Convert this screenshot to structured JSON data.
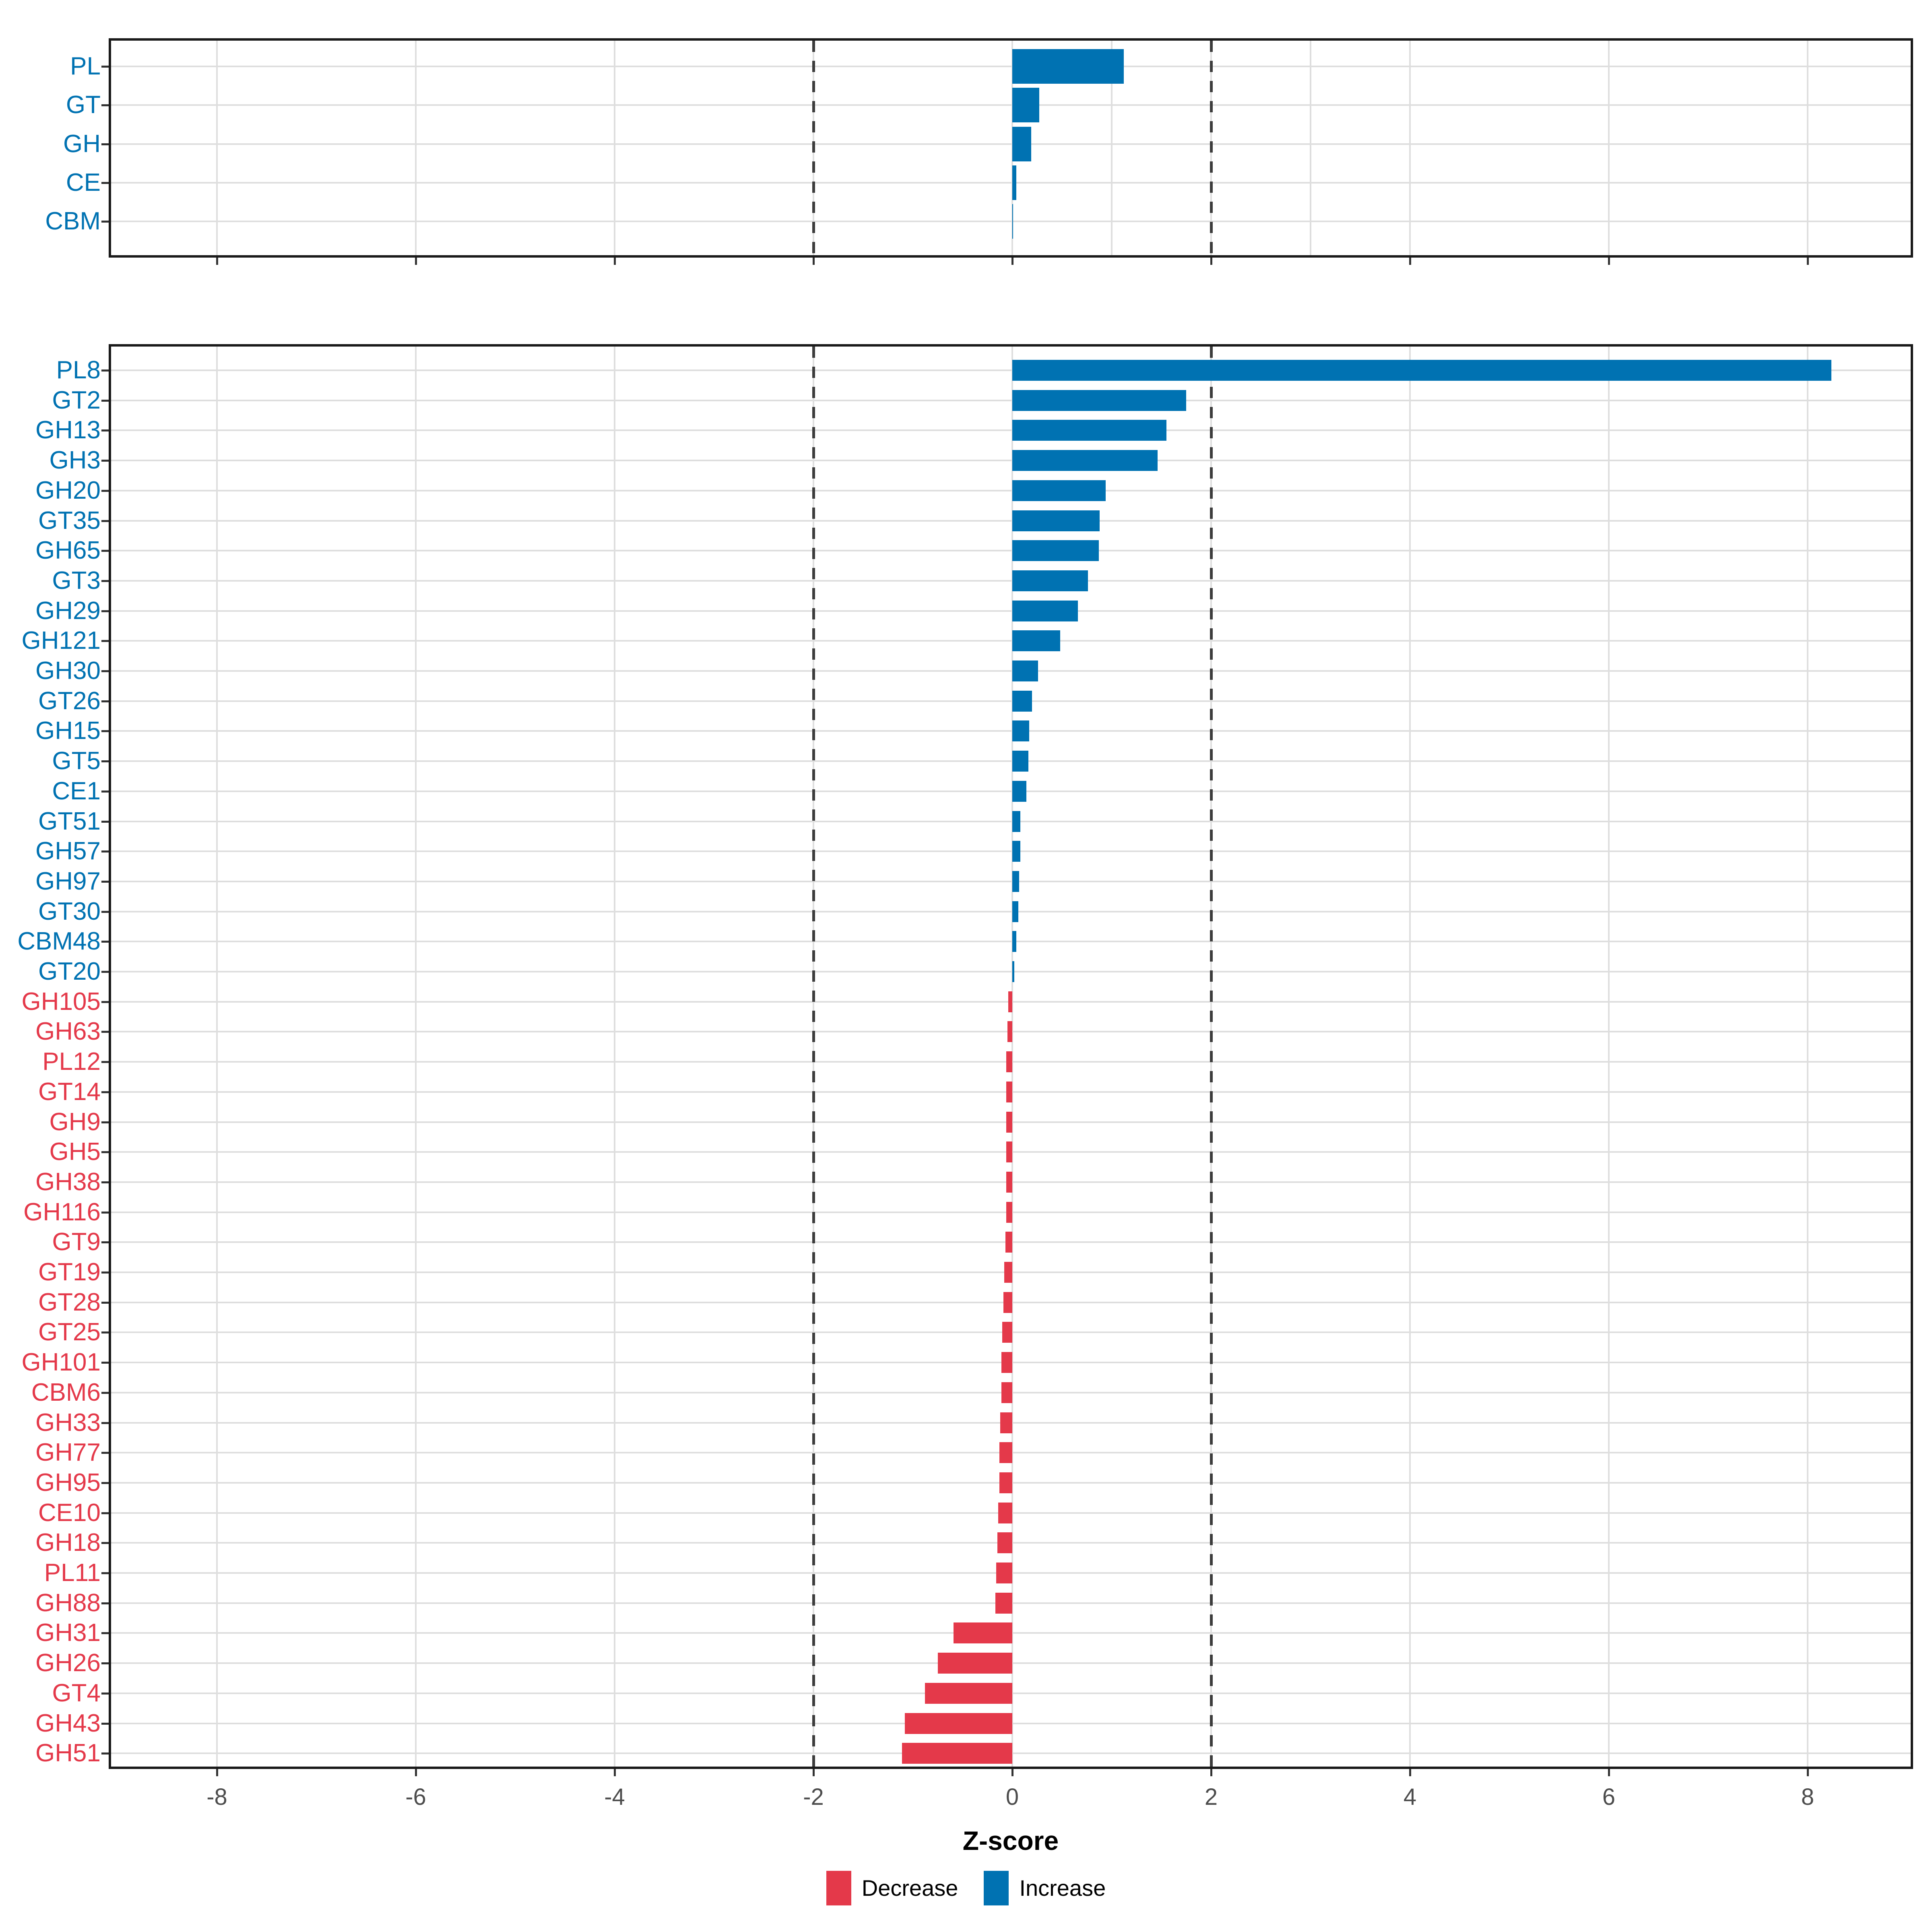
{
  "axis": {
    "xlabel": "Z-score",
    "tick_values": [
      -8,
      -6,
      -4,
      -2,
      0,
      2,
      4,
      6,
      8
    ],
    "tick_labels": [
      "-8",
      "-6",
      "-4",
      "-2",
      "0",
      "2",
      "4",
      "6",
      "8"
    ],
    "xlim": [
      -9.1,
      9.05
    ]
  },
  "legend": {
    "decrease_label": "Decrease",
    "increase_label": "Increase",
    "position": "bottom-center"
  },
  "colors": {
    "increase": "#0072B2",
    "decrease": "#E4394A",
    "grid": "#DEDEDE",
    "dashed_guide": "#3C3C3C",
    "tick_text": "#4D4D4D",
    "panel_border": "#1A1A1A",
    "background": "#FFFFFF"
  },
  "chart_data": [
    {
      "type": "bar",
      "orientation": "horizontal",
      "panel": "class-summary",
      "categories": [
        "PL",
        "GT",
        "GH",
        "CE",
        "CBM"
      ],
      "values": [
        1.12,
        0.27,
        0.19,
        0.04,
        0.01
      ],
      "xlim": [
        -9.1,
        9.05
      ],
      "grid": "on",
      "light_vlines": [
        -8,
        -6,
        -4,
        -2,
        0,
        1,
        2,
        3,
        4,
        6,
        8
      ],
      "dashed_vlines": [
        -2,
        2
      ],
      "legend_position": "none"
    },
    {
      "type": "bar",
      "orientation": "horizontal",
      "panel": "family-detail",
      "categories": [
        "PL8",
        "GT2",
        "GH13",
        "GH3",
        "GH20",
        "GT35",
        "GH65",
        "GT3",
        "GH29",
        "GH121",
        "GH30",
        "GT26",
        "GH15",
        "GT5",
        "CE1",
        "GT51",
        "GH57",
        "GH97",
        "GT30",
        "CBM48",
        "GT20",
        "GH105",
        "GH63",
        "PL12",
        "GT14",
        "GH9",
        "GH5",
        "GH38",
        "GH116",
        "GT9",
        "GT19",
        "GT28",
        "GT25",
        "GH101",
        "CBM6",
        "GH33",
        "GH77",
        "GH95",
        "CE10",
        "GH18",
        "PL11",
        "GH88",
        "GH31",
        "GH26",
        "GT4",
        "GH43",
        "GH51"
      ],
      "values": [
        8.24,
        1.75,
        1.55,
        1.46,
        0.94,
        0.88,
        0.87,
        0.76,
        0.66,
        0.48,
        0.26,
        0.2,
        0.17,
        0.16,
        0.14,
        0.08,
        0.08,
        0.07,
        0.06,
        0.04,
        0.02,
        -0.04,
        -0.05,
        -0.06,
        -0.06,
        -0.06,
        -0.06,
        -0.06,
        -0.06,
        -0.07,
        -0.08,
        -0.09,
        -0.1,
        -0.11,
        -0.11,
        -0.12,
        -0.13,
        -0.13,
        -0.14,
        -0.15,
        -0.16,
        -0.17,
        -0.59,
        -0.75,
        -0.88,
        -1.08,
        -1.11
      ],
      "xlim": [
        -9.1,
        9.05
      ],
      "grid": "on",
      "light_vlines": [
        -8,
        -6,
        -4,
        -2,
        0,
        2,
        4,
        6,
        8
      ],
      "dashed_vlines": [
        -2,
        2
      ],
      "legend_position": "none"
    }
  ]
}
